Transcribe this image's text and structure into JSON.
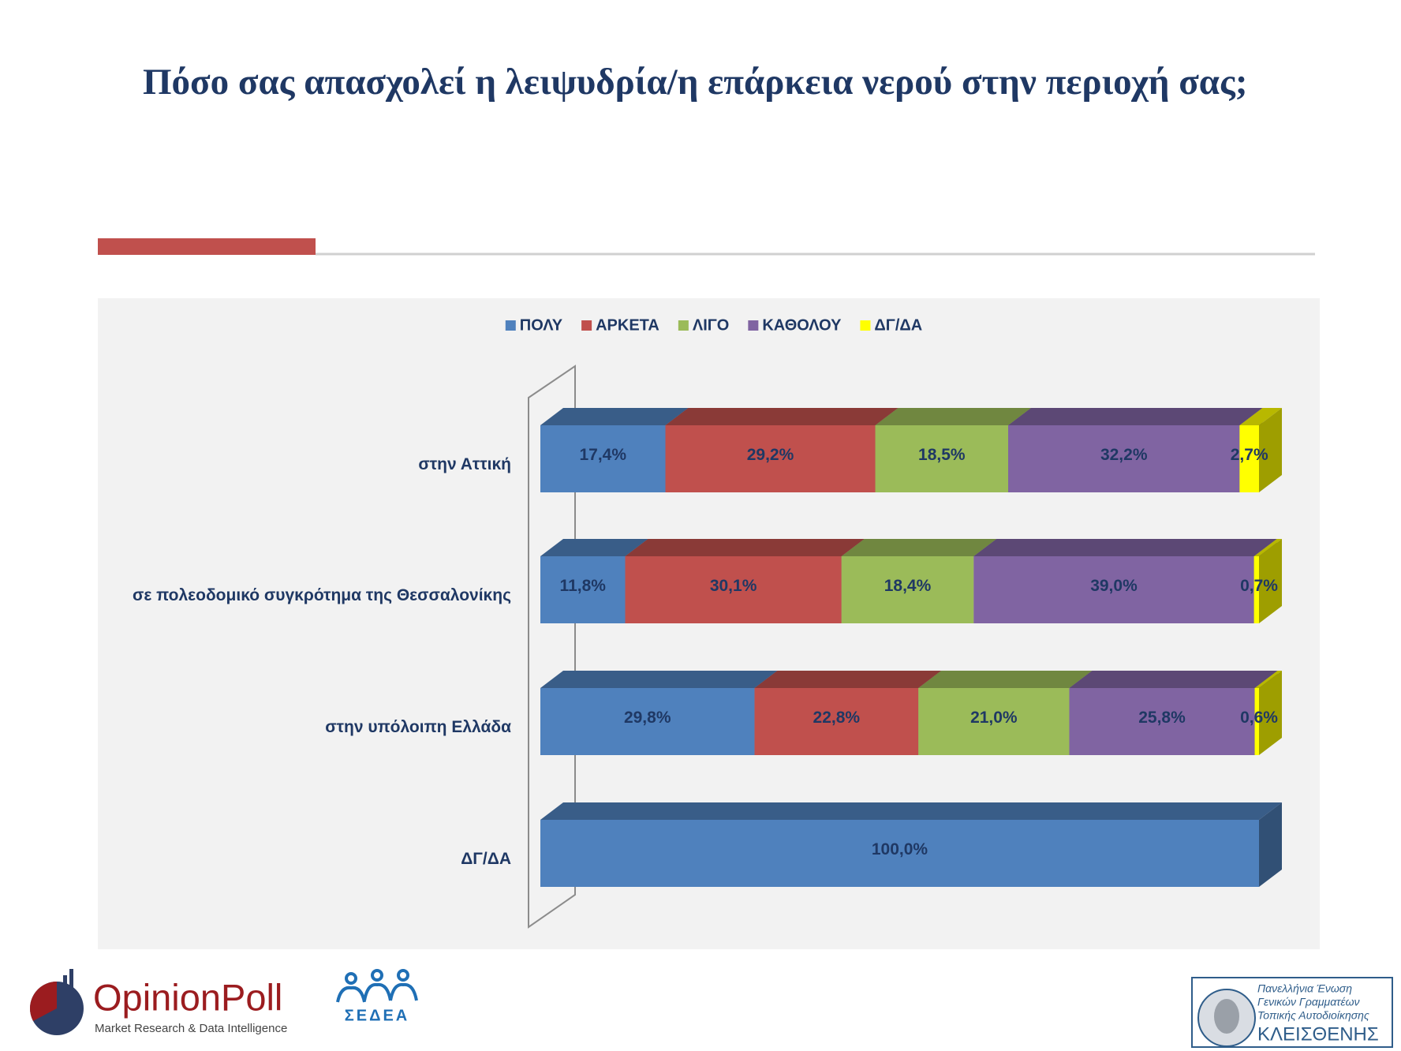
{
  "chart_data": {
    "type": "bar",
    "orientation": "horizontal",
    "stacked": true,
    "title": "Πόσο σας απασχολεί η λειψυδρία/η επάρκεια νερού στην περιοχή σας;",
    "categories": [
      "στην Αττική",
      "σε πολεοδομικό συγκρότημα της Θεσσαλονίκης",
      "στην υπόλοιπη Ελλάδα",
      "ΔΓ/ΔΑ"
    ],
    "series": [
      {
        "name": "ΠΟΛΥ",
        "color": "#4f81bd",
        "values": [
          17.4,
          11.8,
          29.8,
          100.0
        ],
        "value_labels": [
          "17,4%",
          "11,8%",
          "29,8%",
          "100,0%"
        ]
      },
      {
        "name": "ΑΡΚΕΤΑ",
        "color": "#c0504d",
        "values": [
          29.2,
          30.1,
          22.8,
          null
        ],
        "value_labels": [
          "29,2%",
          "30,1%",
          "22,8%",
          null
        ]
      },
      {
        "name": "ΛΙΓΟ",
        "color": "#9bbb59",
        "values": [
          18.5,
          18.4,
          21.0,
          null
        ],
        "value_labels": [
          "18,5%",
          "18,4%",
          "21,0%",
          null
        ]
      },
      {
        "name": "ΚΑΘΟΛΟΥ",
        "color": "#8064a2",
        "values": [
          32.2,
          39.0,
          25.8,
          null
        ],
        "value_labels": [
          "32,2%",
          "39,0%",
          "25,8%",
          null
        ]
      },
      {
        "name": "ΔΓ/ΔΑ",
        "color": "#ffff00",
        "values": [
          2.7,
          0.7,
          0.6,
          null
        ],
        "value_labels": [
          "2,7%",
          "0,7%",
          "0,6%",
          null
        ]
      }
    ],
    "xlim": [
      0,
      100
    ],
    "legend": "top"
  },
  "logos": {
    "opinionpoll": {
      "name": "OpinionPoll",
      "tagline": "Market Research & Data Intelligence"
    },
    "sedea": {
      "name": "ΣΕΔΕΑ"
    },
    "kleisthenis": {
      "lines": [
        "Πανελλήνια Ένωση",
        "Γενικών Γραμματέων",
        "Τοπικής Αυτοδιοίκησης"
      ],
      "name": "ΚΛΕΙΣΘΕΝΗΣ"
    }
  }
}
